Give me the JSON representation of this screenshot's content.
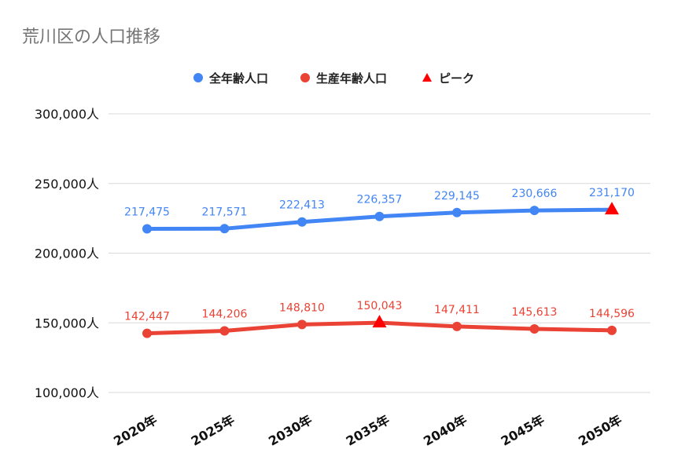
{
  "chart_data": {
    "type": "line",
    "title": "荒川区の人口推移",
    "categories": [
      "2020年",
      "2025年",
      "2030年",
      "2035年",
      "2040年",
      "2045年",
      "2050年"
    ],
    "ylim": [
      100000,
      300000
    ],
    "yticks": [
      100000,
      150000,
      200000,
      250000,
      300000
    ],
    "ytick_labels": [
      "100,000人",
      "150,000人",
      "200,000人",
      "250,000人",
      "300,000人"
    ],
    "grid": true,
    "legend_position": "top",
    "series": [
      {
        "name": "全年齢人口",
        "color": "#4285f4",
        "values": [
          217475,
          217571,
          222413,
          226357,
          229145,
          230666,
          231170
        ],
        "labels": [
          "217,475",
          "217,571",
          "222,413",
          "226,357",
          "229,145",
          "230,666",
          "231,170"
        ],
        "peak_index": 6
      },
      {
        "name": "生産年齢人口",
        "color": "#ea4335",
        "values": [
          142447,
          144206,
          148810,
          150043,
          147411,
          145613,
          144596
        ],
        "labels": [
          "142,447",
          "144,206",
          "148,810",
          "150,043",
          "147,411",
          "145,613",
          "144,596"
        ],
        "peak_index": 3
      }
    ],
    "peak_marker": {
      "name": "ピーク",
      "color": "#ff0000",
      "icon": "triangle-icon"
    }
  }
}
